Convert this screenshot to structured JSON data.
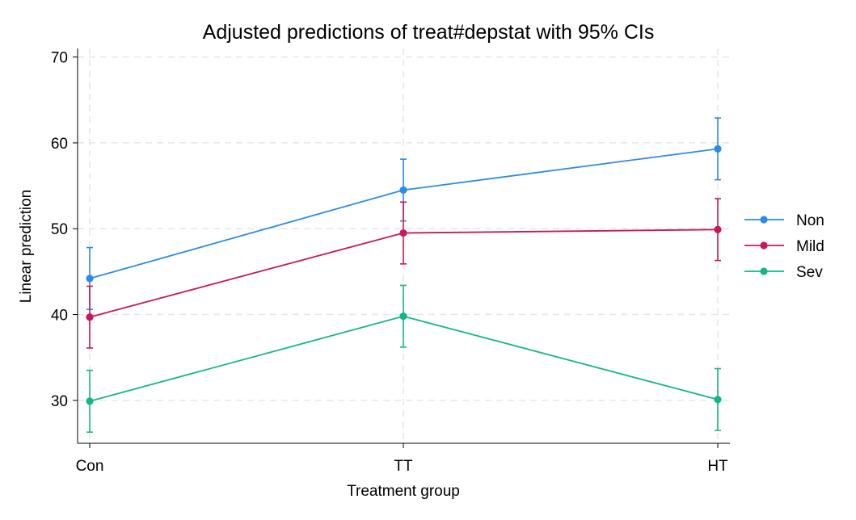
{
  "chart_data": {
    "type": "line",
    "title": "Adjusted predictions of treat#depstat with 95% CIs",
    "xlabel": "Treatment group",
    "ylabel": "Linear prediction",
    "categories": [
      "Con",
      "TT",
      "HT"
    ],
    "ylim": [
      25,
      71
    ],
    "yticks": [
      30,
      40,
      50,
      60,
      70
    ],
    "grid": true,
    "legend_position": "right",
    "series": [
      {
        "name": "Non",
        "color": "#2c8be8",
        "values": [
          44.2,
          54.5,
          59.3
        ],
        "ci_low": [
          40.6,
          50.9,
          55.7
        ],
        "ci_high": [
          47.8,
          58.1,
          62.9
        ]
      },
      {
        "name": "Mild",
        "color": "#c8175c",
        "values": [
          39.7,
          49.5,
          49.9
        ],
        "ci_low": [
          36.1,
          45.9,
          46.3
        ],
        "ci_high": [
          43.3,
          53.1,
          53.5
        ]
      },
      {
        "name": "Sev",
        "color": "#13b787",
        "values": [
          29.9,
          39.8,
          30.1
        ],
        "ci_low": [
          26.3,
          36.2,
          26.5
        ],
        "ci_high": [
          33.5,
          43.4,
          33.7
        ]
      }
    ]
  }
}
